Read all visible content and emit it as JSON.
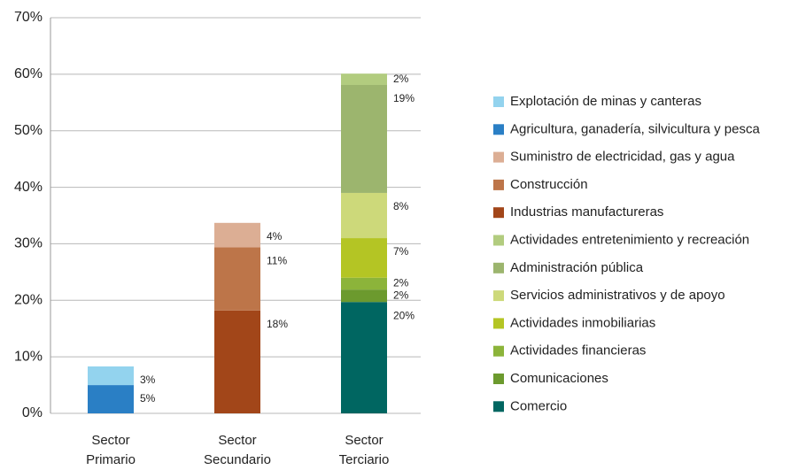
{
  "chart_data": {
    "type": "stacked_bar",
    "categories": [
      "Sector Primario",
      "Sector Secundario",
      "Sector Terciario"
    ],
    "ylim": [
      0,
      70
    ],
    "yticks": [
      {
        "value": 0,
        "label": "0%"
      },
      {
        "value": 10,
        "label": "10%"
      },
      {
        "value": 20,
        "label": "20%"
      },
      {
        "value": 30,
        "label": "30%"
      },
      {
        "value": 40,
        "label": "40%"
      },
      {
        "value": 50,
        "label": "50%"
      },
      {
        "value": 60,
        "label": "60%"
      },
      {
        "value": 70,
        "label": "70%"
      }
    ],
    "grid": true,
    "legend": "right",
    "series": [
      {
        "name": "Explotación de minas y canteras",
        "color": "#93d3ee",
        "values": [
          3.3,
          null,
          null
        ],
        "value_labels": [
          "3%",
          null,
          null
        ]
      },
      {
        "name": "Agricultura, ganadería, silvicultura y pesca",
        "color": "#2a7fc5",
        "values": [
          5.0,
          null,
          null
        ],
        "value_labels": [
          "5%",
          null,
          null
        ]
      },
      {
        "name": "Suministro de electricidad, gas y agua",
        "color": "#dcae94",
        "values": [
          null,
          4.3,
          null
        ],
        "value_labels": [
          null,
          "4%",
          null
        ]
      },
      {
        "name": "Construcción",
        "color": "#bd7549",
        "values": [
          null,
          11.2,
          null
        ],
        "value_labels": [
          null,
          "11%",
          null
        ]
      },
      {
        "name": "Industrias manufactureras",
        "color": "#a24619",
        "values": [
          null,
          18.2,
          null
        ],
        "value_labels": [
          null,
          "18%",
          null
        ]
      },
      {
        "name": "Actividades entretenimiento y recreación",
        "color": "#b2cc7f",
        "values": [
          null,
          null,
          2.0
        ],
        "value_labels": [
          null,
          null,
          "2%"
        ]
      },
      {
        "name": "Administración pública",
        "color": "#9cb56e",
        "values": [
          null,
          null,
          19.1
        ],
        "value_labels": [
          null,
          null,
          "19%"
        ]
      },
      {
        "name": "Servicios administrativos y de apoyo",
        "color": "#cdd97a",
        "values": [
          null,
          null,
          8.0
        ],
        "value_labels": [
          null,
          null,
          "8%"
        ]
      },
      {
        "name": "Actividades inmobiliarias",
        "color": "#b4c524",
        "values": [
          null,
          null,
          7.0
        ],
        "value_labels": [
          null,
          null,
          "7%"
        ]
      },
      {
        "name": "Actividades financieras",
        "color": "#8cb43a",
        "values": [
          null,
          null,
          2.1
        ],
        "value_labels": [
          null,
          null,
          "2%"
        ]
      },
      {
        "name": "Comunicaciones",
        "color": "#6c9a2e",
        "values": [
          null,
          null,
          2.2
        ],
        "value_labels": [
          null,
          null,
          "2%"
        ]
      },
      {
        "name": "Comercio",
        "color": "#006661",
        "values": [
          null,
          null,
          19.7
        ],
        "value_labels": [
          null,
          null,
          "20%"
        ]
      }
    ]
  }
}
